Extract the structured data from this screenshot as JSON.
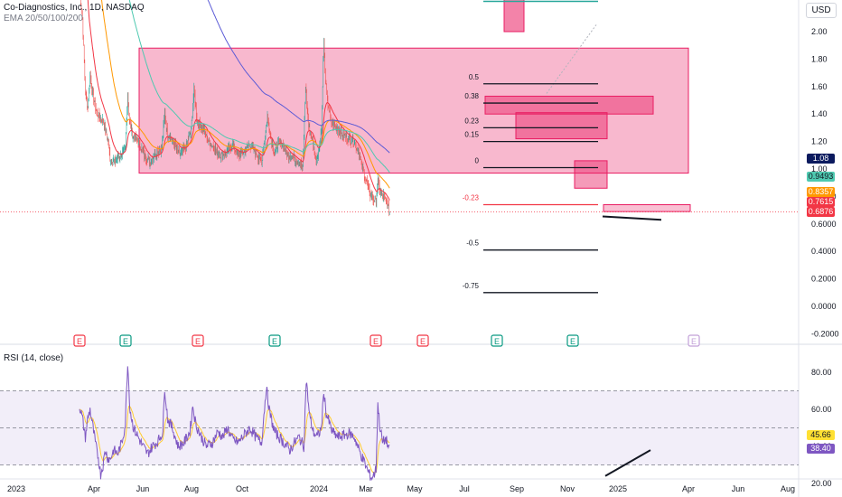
{
  "header": {
    "title": "Co-Diagnostics, Inc., 1D, NASDAQ",
    "indicators": "EMA 20/50/100/200",
    "currency": "USD",
    "rsi_label": "RSI (14, close)"
  },
  "price_tags": [
    {
      "value": "1.08",
      "color": "#0b1a5e",
      "price": 1.08
    },
    {
      "value": "0.9493",
      "color": "#4ec9b0",
      "price": 0.9493
    },
    {
      "value": "0.8357",
      "color": "#ff9800",
      "price": 0.8357
    },
    {
      "value": "0.7615",
      "color": "#f23645",
      "price": 0.7615
    },
    {
      "value": "0.6876",
      "color": "#f23645",
      "price": 0.6876
    }
  ],
  "rsi_tags": [
    {
      "value": "45.66",
      "color": "#ffe033",
      "text_color": "#131722",
      "rsi": 45.66
    },
    {
      "value": "38.40",
      "color": "#7e57c2",
      "text_color": "#ffffff",
      "rsi": 38.4
    }
  ],
  "chart_data": {
    "type": "candlestick",
    "y_ticks": [
      "2.00",
      "1.80",
      "1.60",
      "1.40",
      "1.20",
      "1.00",
      "0.8000",
      "0.6000",
      "0.4000",
      "0.2000",
      "0.0000",
      "-0.2000"
    ],
    "y_tick_values": [
      2.0,
      1.8,
      1.6,
      1.4,
      1.2,
      1.0,
      0.8,
      0.6,
      0.4,
      0.2,
      0.0,
      -0.2
    ],
    "x_ticks": [
      "2023",
      "Apr",
      "Jun",
      "Aug",
      "Oct",
      "2024",
      "Mar",
      "May",
      "Jul",
      "Sep",
      "Nov",
      "2025",
      "Apr",
      "Jun",
      "Aug"
    ],
    "rsi_ticks": [
      "80.00",
      "60.00",
      "40.00",
      "20.00"
    ],
    "rsi_tick_values": [
      80,
      60,
      40,
      20
    ],
    "rsi_bands": [
      70,
      50,
      30
    ],
    "fib_levels": [
      {
        "label": "0.5",
        "price": 1.62
      },
      {
        "label": "0.38",
        "price": 1.48
      },
      {
        "label": "0.23",
        "price": 1.3
      },
      {
        "label": "0.15",
        "price": 1.2
      },
      {
        "label": "0",
        "price": 1.01
      },
      {
        "label": "-0.23",
        "price": 0.74
      },
      {
        "label": "-0.5",
        "price": 0.41
      },
      {
        "label": "-0.75",
        "price": 0.1
      }
    ],
    "earnings_markers": [
      {
        "label": "E",
        "color": "#f23645"
      },
      {
        "label": "E",
        "color": "#089981"
      },
      {
        "label": "E",
        "color": "#f23645"
      },
      {
        "label": "E",
        "color": "#089981"
      },
      {
        "label": "E",
        "color": "#f23645"
      },
      {
        "label": "E",
        "color": "#f23645"
      },
      {
        "label": "E",
        "color": "#089981"
      },
      {
        "label": "E",
        "color": "#089981"
      },
      {
        "label": "E",
        "color": "#c2a0d8"
      }
    ],
    "price_anchors": [
      [
        0,
        2.3
      ],
      [
        5,
        2.1
      ],
      [
        10,
        1.55
      ],
      [
        14,
        1.45
      ],
      [
        18,
        1.68
      ],
      [
        22,
        1.55
      ],
      [
        30,
        1.4
      ],
      [
        40,
        1.35
      ],
      [
        48,
        1.22
      ],
      [
        52,
        1.08
      ],
      [
        60,
        1.05
      ],
      [
        70,
        1.1
      ],
      [
        78,
        1.15
      ],
      [
        82,
        1.55
      ],
      [
        85,
        1.35
      ],
      [
        90,
        1.25
      ],
      [
        100,
        1.2
      ],
      [
        110,
        1.1
      ],
      [
        120,
        1.05
      ],
      [
        130,
        1.12
      ],
      [
        140,
        1.15
      ],
      [
        145,
        1.4
      ],
      [
        150,
        1.25
      ],
      [
        160,
        1.2
      ],
      [
        170,
        1.1
      ],
      [
        180,
        1.15
      ],
      [
        190,
        1.28
      ],
      [
        195,
        1.58
      ],
      [
        200,
        1.35
      ],
      [
        210,
        1.3
      ],
      [
        220,
        1.2
      ],
      [
        230,
        1.15
      ],
      [
        240,
        1.1
      ],
      [
        250,
        1.12
      ],
      [
        260,
        1.18
      ],
      [
        270,
        1.1
      ],
      [
        280,
        1.12
      ],
      [
        290,
        1.18
      ],
      [
        300,
        1.12
      ],
      [
        310,
        1.05
      ],
      [
        320,
        1.38
      ],
      [
        325,
        1.25
      ],
      [
        332,
        1.1
      ],
      [
        338,
        1.2
      ],
      [
        345,
        1.18
      ],
      [
        355,
        1.1
      ],
      [
        365,
        1.08
      ],
      [
        375,
        1.05
      ],
      [
        380,
        1.0
      ],
      [
        385,
        1.6
      ],
      [
        390,
        1.32
      ],
      [
        397,
        1.2
      ],
      [
        403,
        1.05
      ],
      [
        408,
        1.15
      ],
      [
        412,
        1.3
      ],
      [
        416,
        1.95
      ],
      [
        418,
        1.7
      ],
      [
        422,
        1.5
      ],
      [
        428,
        1.35
      ],
      [
        438,
        1.3
      ],
      [
        448,
        1.25
      ],
      [
        458,
        1.22
      ],
      [
        468,
        1.2
      ],
      [
        476,
        1.12
      ],
      [
        482,
        1.0
      ],
      [
        488,
        0.92
      ],
      [
        494,
        0.82
      ],
      [
        500,
        0.78
      ],
      [
        505,
        0.76
      ],
      [
        508,
        0.92
      ],
      [
        512,
        0.82
      ],
      [
        518,
        0.8
      ],
      [
        524,
        0.74
      ],
      [
        528,
        0.69
      ]
    ],
    "rsi_anchors": [
      [
        0,
        62
      ],
      [
        5,
        55
      ],
      [
        10,
        45
      ],
      [
        14,
        55
      ],
      [
        18,
        60
      ],
      [
        22,
        52
      ],
      [
        28,
        40
      ],
      [
        32,
        34
      ],
      [
        36,
        25
      ],
      [
        40,
        30
      ],
      [
        44,
        38
      ],
      [
        48,
        34
      ],
      [
        52,
        33
      ],
      [
        58,
        38
      ],
      [
        65,
        36
      ],
      [
        72,
        42
      ],
      [
        78,
        52
      ],
      [
        82,
        86
      ],
      [
        86,
        60
      ],
      [
        92,
        50
      ],
      [
        100,
        45
      ],
      [
        108,
        40
      ],
      [
        116,
        36
      ],
      [
        124,
        40
      ],
      [
        134,
        43
      ],
      [
        142,
        48
      ],
      [
        145,
        72
      ],
      [
        150,
        55
      ],
      [
        158,
        50
      ],
      [
        168,
        40
      ],
      [
        178,
        42
      ],
      [
        188,
        48
      ],
      [
        193,
        62
      ],
      [
        198,
        52
      ],
      [
        206,
        46
      ],
      [
        216,
        40
      ],
      [
        226,
        42
      ],
      [
        236,
        48
      ],
      [
        244,
        45
      ],
      [
        252,
        50
      ],
      [
        260,
        44
      ],
      [
        270,
        42
      ],
      [
        280,
        46
      ],
      [
        290,
        50
      ],
      [
        300,
        45
      ],
      [
        310,
        42
      ],
      [
        318,
        72
      ],
      [
        324,
        58
      ],
      [
        332,
        48
      ],
      [
        340,
        45
      ],
      [
        348,
        42
      ],
      [
        358,
        38
      ],
      [
        366,
        42
      ],
      [
        374,
        45
      ],
      [
        382,
        40
      ],
      [
        386,
        76
      ],
      [
        392,
        56
      ],
      [
        398,
        48
      ],
      [
        405,
        45
      ],
      [
        412,
        50
      ],
      [
        416,
        70
      ],
      [
        420,
        58
      ],
      [
        430,
        48
      ],
      [
        440,
        45
      ],
      [
        450,
        46
      ],
      [
        460,
        47
      ],
      [
        468,
        45
      ],
      [
        476,
        38
      ],
      [
        484,
        32
      ],
      [
        492,
        26
      ],
      [
        497,
        23
      ],
      [
        502,
        25
      ],
      [
        505,
        28
      ],
      [
        508,
        63
      ],
      [
        511,
        52
      ],
      [
        516,
        42
      ],
      [
        522,
        44
      ],
      [
        527,
        38
      ]
    ]
  }
}
